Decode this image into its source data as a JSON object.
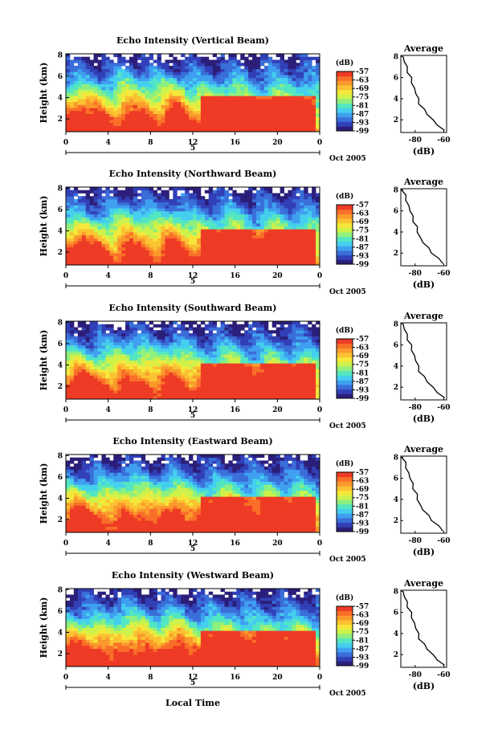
{
  "chart_data": {
    "type": "heatmap",
    "x_label": "Local Time",
    "y_label": "Height (km)",
    "day_label": "5",
    "month_label": "Oct 2005",
    "x_ticks": [
      "0",
      "4",
      "8",
      "12",
      "16",
      "20",
      "0"
    ],
    "x_range_hours": [
      0,
      24
    ],
    "y_ticks": [
      "2",
      "4",
      "6",
      "8"
    ],
    "y_range_km": [
      0.8,
      8.1
    ],
    "colorbar": {
      "unit": "(dB)",
      "ticks": [
        "-57",
        "-63",
        "-69",
        "-75",
        "-81",
        "-87",
        "-93",
        "-99"
      ],
      "range_db": [
        -99,
        -57
      ],
      "colors": [
        "#2b1f7a",
        "#3240b8",
        "#3a6ed8",
        "#3f9ff0",
        "#45cfee",
        "#53e6c2",
        "#8ef07e",
        "#cdf24c",
        "#f5e83a",
        "#fbc232",
        "#fb9a2c",
        "#f96f28",
        "#ee3b25"
      ]
    },
    "average_profile": {
      "title": "Average",
      "x_label": "(dB)",
      "x_ticks": [
        "-80",
        "-60"
      ],
      "x_range_db": [
        -90,
        -58
      ],
      "y_ticks": [
        "2",
        "4",
        "6",
        "8"
      ],
      "height_km": [
        1.0,
        1.5,
        2.0,
        2.5,
        3.0,
        3.5,
        4.0,
        4.5,
        5.0,
        5.5,
        6.0,
        6.5,
        7.0,
        7.5,
        8.0
      ],
      "echo_db": [
        -60,
        -64,
        -68,
        -71,
        -74,
        -77,
        -78,
        -79,
        -81,
        -82,
        -83,
        -85,
        -86,
        -87,
        -89
      ]
    },
    "panels": [
      {
        "title": "Echo Intensity (Vertical Beam)",
        "date_label": "Oct 2005"
      },
      {
        "title": "Echo Intensity (Northward Beam)",
        "date_label": "Oct 2005"
      },
      {
        "title": "Echo Intensity (Southward Beam)",
        "date_label": "Oct 2005"
      },
      {
        "title": "Echo Intensity (Eastward Beam)",
        "date_label": "Oct 2005"
      },
      {
        "title": "Echo Intensity (Westward Beam)",
        "date_label": "Oct 2005"
      }
    ]
  }
}
